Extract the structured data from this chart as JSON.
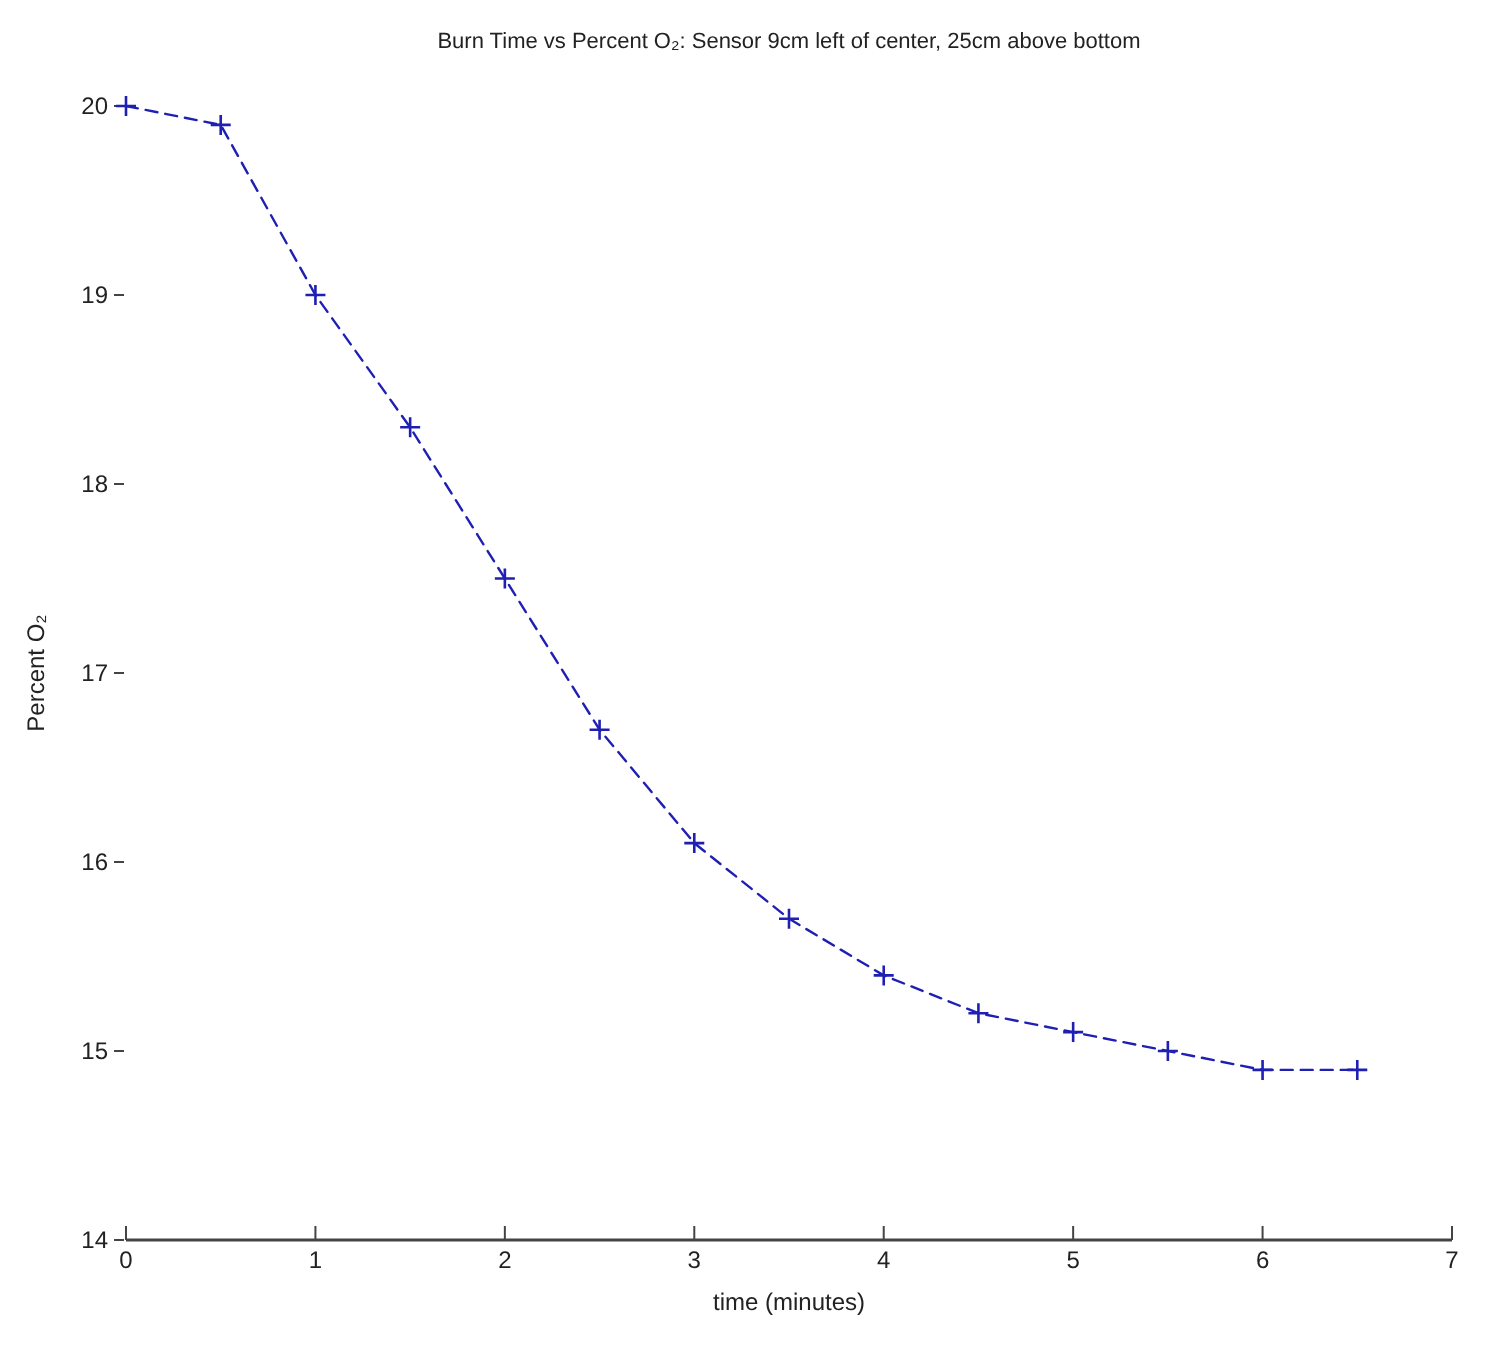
{
  "chart_data": {
    "type": "line",
    "title": "Burn Time vs Percent O₂:  Sensor 9cm left of center, 25cm above bottom",
    "xlabel": "time (minutes)",
    "ylabel": "Percent O₂",
    "x": [
      0,
      0.5,
      1,
      1.5,
      2,
      2.5,
      3,
      3.5,
      4,
      4.5,
      5,
      5.5,
      6,
      6.5
    ],
    "series": [
      {
        "color": "#1f1fb4",
        "values": [
          20,
          19.9,
          19.0,
          18.3,
          17.5,
          16.7,
          16.1,
          15.7,
          15.4,
          15.2,
          15.1,
          15.0,
          14.9,
          14.9
        ]
      }
    ],
    "xlim": [
      0,
      7
    ],
    "xticks": [
      0,
      1,
      2,
      3,
      4,
      5,
      6,
      7
    ],
    "ylim": [
      14,
      20
    ],
    "yticks": [
      14,
      15,
      16,
      17,
      18,
      19,
      20
    ],
    "marker": "cross",
    "line_style": "dashed"
  }
}
